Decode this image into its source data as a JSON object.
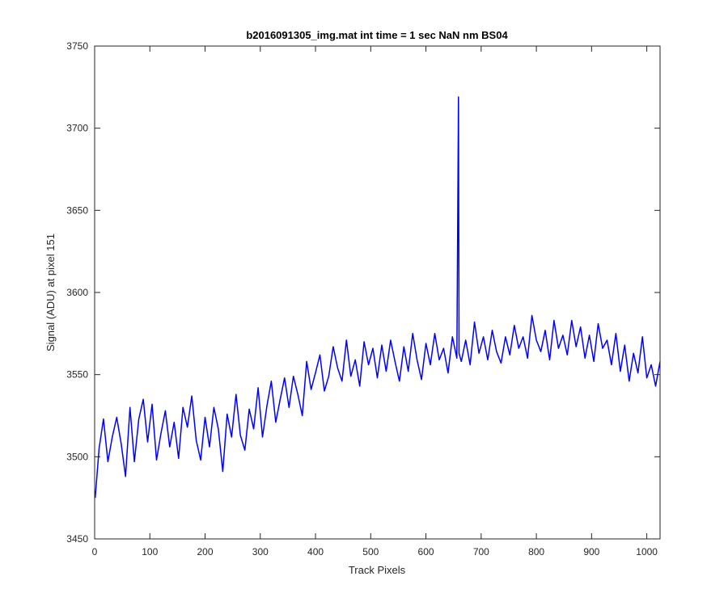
{
  "chart_data": {
    "type": "line",
    "title": "b2016091305_img.mat int time = 1 sec  NaN nm BS04",
    "xlabel": "Track Pixels",
    "ylabel": "Signal (ADU) at pixel 151",
    "xlim": [
      0,
      1024
    ],
    "ylim": [
      3450,
      3750
    ],
    "xticks": [
      0,
      100,
      200,
      300,
      400,
      500,
      600,
      700,
      800,
      900,
      1000
    ],
    "yticks": [
      3450,
      3500,
      3550,
      3600,
      3650,
      3700,
      3750
    ],
    "grid": false,
    "box": true,
    "line_color": "#0000ff",
    "axis_color": "#262626",
    "series": [
      {
        "x": [
          1,
          8,
          16,
          24,
          32,
          40,
          48,
          56,
          64,
          72,
          80,
          88,
          96,
          104,
          112,
          120,
          128,
          136,
          144,
          152,
          160,
          168,
          176,
          184,
          192,
          200,
          208,
          216,
          224,
          232,
          240,
          248,
          256,
          264,
          272,
          280,
          288,
          296,
          304,
          312,
          320,
          328,
          336,
          344,
          352,
          360,
          368,
          376,
          384,
          392,
          400,
          408,
          416,
          424,
          432,
          440,
          448,
          456,
          464,
          472,
          480,
          488,
          496,
          504,
          512,
          520,
          528,
          536,
          544,
          552,
          560,
          568,
          576,
          584,
          592,
          600,
          608,
          616,
          624,
          632,
          640,
          648,
          656,
          659,
          660,
          664,
          672,
          680,
          688,
          696,
          704,
          712,
          720,
          728,
          736,
          744,
          752,
          760,
          768,
          776,
          784,
          792,
          800,
          808,
          816,
          824,
          832,
          840,
          848,
          856,
          864,
          872,
          880,
          888,
          896,
          904,
          912,
          920,
          928,
          936,
          944,
          952,
          960,
          968,
          976,
          984,
          992,
          1000,
          1008,
          1016,
          1024
        ],
        "y": [
          3475,
          3505,
          3523,
          3497,
          3512,
          3524,
          3508,
          3488,
          3530,
          3497,
          3523,
          3535,
          3509,
          3532,
          3498,
          3514,
          3528,
          3506,
          3521,
          3499,
          3530,
          3518,
          3537,
          3510,
          3498,
          3524,
          3506,
          3530,
          3517,
          3491,
          3526,
          3512,
          3538,
          3513,
          3504,
          3529,
          3517,
          3542,
          3512,
          3531,
          3546,
          3521,
          3535,
          3548,
          3530,
          3549,
          3538,
          3525,
          3558,
          3541,
          3551,
          3562,
          3540,
          3549,
          3567,
          3554,
          3546,
          3571,
          3549,
          3559,
          3543,
          3570,
          3556,
          3566,
          3548,
          3568,
          3552,
          3571,
          3558,
          3546,
          3567,
          3552,
          3575,
          3559,
          3547,
          3569,
          3556,
          3575,
          3559,
          3566,
          3551,
          3573,
          3560,
          3719,
          3563,
          3558,
          3571,
          3556,
          3582,
          3563,
          3573,
          3559,
          3577,
          3564,
          3557,
          3573,
          3562,
          3580,
          3566,
          3573,
          3560,
          3586,
          3571,
          3564,
          3577,
          3559,
          3583,
          3566,
          3574,
          3562,
          3583,
          3567,
          3579,
          3560,
          3574,
          3558,
          3581,
          3566,
          3571,
          3556,
          3575,
          3552,
          3568,
          3546,
          3563,
          3551,
          3573,
          3548,
          3556,
          3543,
          3558
        ]
      }
    ]
  }
}
